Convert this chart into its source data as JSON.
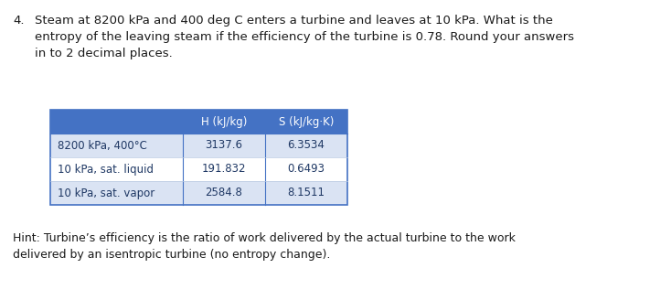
{
  "title_number": "4.",
  "title_lines": [
    "Steam at 8200 kPa and 400 deg C enters a turbine and leaves at 10 kPa. What is the",
    "entropy of the leaving steam if the efficiency of the turbine is 0.78. Round your answers",
    "in to 2 decimal places."
  ],
  "hint_lines": [
    "Hint: Turbine’s efficiency is the ratio of work delivered by the actual turbine to the work",
    "delivered by an isentropic turbine (no entropy change)."
  ],
  "col_headers": [
    "",
    "H (kJ/kg)",
    "S (kJ/kg·K)"
  ],
  "rows": [
    [
      "8200 kPa, 400°C",
      "3137.6",
      "6.3534"
    ],
    [
      "10 kPa, sat. liquid",
      "191.832",
      "0.6493"
    ],
    [
      "10 kPa, sat. vapor",
      "2584.8",
      "8.1511"
    ]
  ],
  "header_bg": "#4472C4",
  "header_fg": "#FFFFFF",
  "row_bg_odd": "#DAE3F3",
  "row_bg_even": "#FFFFFF",
  "row_fg": "#1F3864",
  "table_border_color": "#4472C4",
  "bg_color": "#FFFFFF",
  "font_size_title": 9.5,
  "font_size_table": 8.5,
  "font_size_hint": 9.0,
  "title_color": "#1a1a1a",
  "hint_color": "#1a1a1a"
}
